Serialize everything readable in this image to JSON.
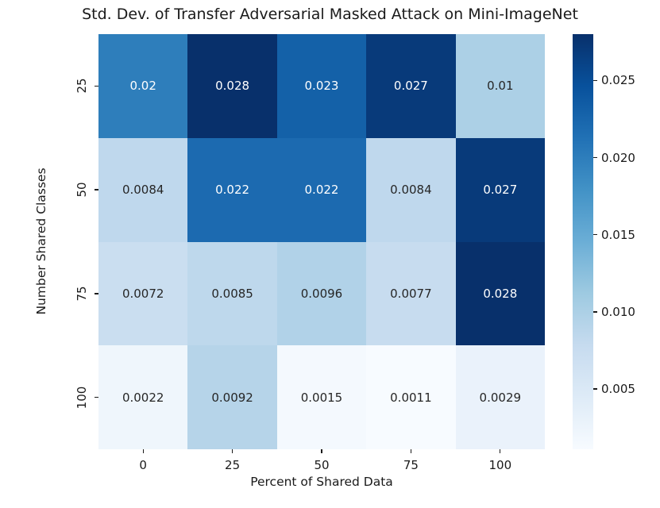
{
  "title": "Std. Dev. of Transfer Adversarial Masked Attack on Mini-ImageNet",
  "chart_data": {
    "type": "heatmap",
    "title": "Std. Dev. of Transfer Adversarial Masked Attack on Mini-ImageNet",
    "xlabel": "Percent of Shared Data",
    "ylabel": "Number Shared Classes",
    "x_tick_labels": [
      "0",
      "25",
      "50",
      "75",
      "100"
    ],
    "y_tick_labels": [
      "25",
      "50",
      "75",
      "100"
    ],
    "values": [
      [
        0.02,
        0.028,
        0.023,
        0.027,
        0.01
      ],
      [
        0.0084,
        0.022,
        0.022,
        0.0084,
        0.027
      ],
      [
        0.0072,
        0.0085,
        0.0096,
        0.0077,
        0.028
      ],
      [
        0.0022,
        0.0092,
        0.0015,
        0.0011,
        0.0029
      ]
    ],
    "cell_labels": [
      [
        "0.02",
        "0.028",
        "0.023",
        "0.027",
        "0.01"
      ],
      [
        "0.0084",
        "0.022",
        "0.022",
        "0.0084",
        "0.027"
      ],
      [
        "0.0072",
        "0.0085",
        "0.0096",
        "0.0077",
        "0.028"
      ],
      [
        "0.0022",
        "0.0092",
        "0.0015",
        "0.0011",
        "0.0029"
      ]
    ],
    "vmin": 0.0011,
    "vmax": 0.028,
    "colormap": "Blues",
    "colormap_stops": [
      "#f7fbff",
      "#deebf7",
      "#c6dbef",
      "#9ecae1",
      "#6baed6",
      "#4292c6",
      "#2171b5",
      "#08519c",
      "#08306b"
    ],
    "colorbar": {
      "tick_labels": [
        "0.005",
        "0.010",
        "0.015",
        "0.020",
        "0.025"
      ],
      "tick_values": [
        0.005,
        0.01,
        0.015,
        0.02,
        0.025
      ]
    },
    "annotation_colors": {
      "light_text": "#ffffff",
      "dark_text": "#262626"
    },
    "grid": false,
    "legend_position": "colorbar-right"
  }
}
